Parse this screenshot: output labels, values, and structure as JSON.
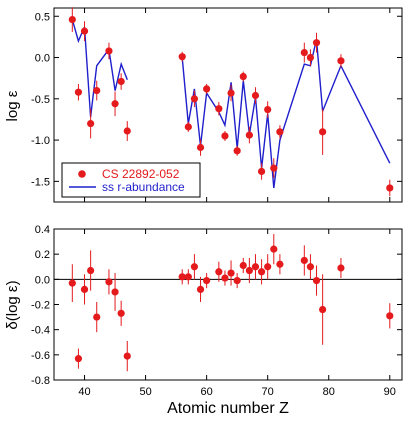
{
  "colors": {
    "points": "#e41a1c",
    "line": "#1f1fcc",
    "legend_label_points": "#e41a1c",
    "legend_label_line": "#1f1fcc"
  },
  "chart_data": [
    {
      "type": "scatter",
      "panel": "top",
      "ylabel": "log ε",
      "xlim": [
        35,
        92
      ],
      "ylim": [
        -1.75,
        0.6
      ],
      "xticks": [
        40,
        50,
        60,
        70,
        80,
        90
      ],
      "yticks": [
        0.5,
        0.0,
        -0.5,
        -1.0,
        -1.5
      ],
      "ytick_labels": [
        "0.5",
        "0.0",
        "-0.5",
        "-1.0",
        "-1.5"
      ],
      "legend": {
        "placement": "lower-left",
        "entries": [
          "CS 22892-052",
          "ss r-abundance"
        ]
      },
      "series": [
        {
          "name": "CS 22892-052",
          "kind": "points",
          "points": [
            {
              "x": 38,
              "y": 0.46,
              "err": 0.15
            },
            {
              "x": 39,
              "y": -0.42,
              "err": 0.1
            },
            {
              "x": 40,
              "y": 0.32,
              "err": 0.12
            },
            {
              "x": 41,
              "y": -0.8,
              "err": 0.18
            },
            {
              "x": 42,
              "y": -0.4,
              "err": 0.12
            },
            {
              "x": 44,
              "y": 0.08,
              "err": 0.1
            },
            {
              "x": 45,
              "y": -0.56,
              "err": 0.15
            },
            {
              "x": 46,
              "y": -0.29,
              "err": 0.1
            },
            {
              "x": 47,
              "y": -0.89,
              "err": 0.12
            },
            {
              "x": 56,
              "y": 0.01,
              "err": 0.06
            },
            {
              "x": 57,
              "y": -0.84,
              "err": 0.06
            },
            {
              "x": 58,
              "y": -0.5,
              "err": 0.1
            },
            {
              "x": 59,
              "y": -1.09,
              "err": 0.1
            },
            {
              "x": 60,
              "y": -0.38,
              "err": 0.06
            },
            {
              "x": 62,
              "y": -0.62,
              "err": 0.08
            },
            {
              "x": 63,
              "y": -0.95,
              "err": 0.06
            },
            {
              "x": 64,
              "y": -0.43,
              "err": 0.1
            },
            {
              "x": 65,
              "y": -1.13,
              "err": 0.06
            },
            {
              "x": 66,
              "y": -0.23,
              "err": 0.06
            },
            {
              "x": 67,
              "y": -0.94,
              "err": 0.1
            },
            {
              "x": 68,
              "y": -0.46,
              "err": 0.1
            },
            {
              "x": 69,
              "y": -1.38,
              "err": 0.1
            },
            {
              "x": 70,
              "y": -0.63,
              "err": 0.1
            },
            {
              "x": 71,
              "y": -1.34,
              "err": 0.12
            },
            {
              "x": 72,
              "y": -0.9,
              "err": 0.08
            },
            {
              "x": 76,
              "y": 0.06,
              "err": 0.12
            },
            {
              "x": 77,
              "y": 0.0,
              "err": 0.1
            },
            {
              "x": 78,
              "y": 0.18,
              "err": 0.12
            },
            {
              "x": 79,
              "y": -0.9,
              "err": 0.28
            },
            {
              "x": 82,
              "y": -0.04,
              "err": 0.08
            },
            {
              "x": 90,
              "y": -1.58,
              "err": 0.1
            }
          ]
        },
        {
          "name": "ss r-abundance",
          "kind": "line",
          "segments": [
            [
              [
                38,
                0.46
              ],
              [
                39,
                0.2
              ],
              [
                40,
                0.37
              ],
              [
                41,
                -0.72
              ],
              [
                42,
                -0.1
              ],
              [
                44,
                0.1
              ],
              [
                45,
                -0.4
              ],
              [
                46,
                -0.08
              ],
              [
                47,
                -0.27
              ]
            ],
            [
              [
                56,
                0.0
              ],
              [
                57,
                -0.8
              ],
              [
                58,
                -0.38
              ],
              [
                59,
                -1.07
              ],
              [
                60,
                -0.43
              ],
              [
                62,
                -0.66
              ],
              [
                63,
                -0.82
              ],
              [
                64,
                -0.3
              ],
              [
                65,
                -1.1
              ],
              [
                66,
                -0.28
              ],
              [
                67,
                -0.93
              ],
              [
                68,
                -0.48
              ],
              [
                69,
                -1.34
              ],
              [
                70,
                -0.68
              ],
              [
                71,
                -1.58
              ],
              [
                72,
                -1.0
              ],
              [
                76,
                -0.08
              ],
              [
                77,
                -0.1
              ],
              [
                78,
                0.22
              ],
              [
                79,
                -0.65
              ],
              [
                82,
                -0.1
              ],
              [
                90,
                -1.28
              ]
            ]
          ]
        }
      ]
    },
    {
      "type": "scatter",
      "panel": "bottom",
      "xlabel": "Atomic number Z",
      "ylabel": "δ(log ε)",
      "xlim": [
        35,
        92
      ],
      "ylim": [
        -0.8,
        0.4
      ],
      "xticks": [
        40,
        50,
        60,
        70,
        80,
        90
      ],
      "yticks": [
        0.4,
        0.2,
        0.0,
        -0.2,
        -0.4,
        -0.6,
        -0.8
      ],
      "ytick_labels": [
        "0.4",
        "0.2",
        "0.0",
        "-0.2",
        "-0.4",
        "-0.6",
        "-0.8"
      ],
      "reference_line_y": 0.0,
      "series": [
        {
          "name": "CS 22892-052",
          "kind": "points",
          "points": [
            {
              "x": 38,
              "y": -0.03,
              "err": 0.15
            },
            {
              "x": 39,
              "y": -0.63,
              "err": 0.08
            },
            {
              "x": 40,
              "y": -0.08,
              "err": 0.12
            },
            {
              "x": 41,
              "y": 0.07,
              "err": 0.16
            },
            {
              "x": 42,
              "y": -0.3,
              "err": 0.12
            },
            {
              "x": 44,
              "y": -0.02,
              "err": 0.1
            },
            {
              "x": 45,
              "y": -0.1,
              "err": 0.15
            },
            {
              "x": 46,
              "y": -0.27,
              "err": 0.1
            },
            {
              "x": 47,
              "y": -0.61,
              "err": 0.12
            },
            {
              "x": 56,
              "y": 0.02,
              "err": 0.06
            },
            {
              "x": 57,
              "y": 0.02,
              "err": 0.06
            },
            {
              "x": 58,
              "y": 0.1,
              "err": 0.1
            },
            {
              "x": 59,
              "y": -0.08,
              "err": 0.1
            },
            {
              "x": 60,
              "y": -0.01,
              "err": 0.06
            },
            {
              "x": 62,
              "y": 0.06,
              "err": 0.08
            },
            {
              "x": 63,
              "y": 0.01,
              "err": 0.06
            },
            {
              "x": 64,
              "y": 0.05,
              "err": 0.1
            },
            {
              "x": 65,
              "y": -0.01,
              "err": 0.06
            },
            {
              "x": 66,
              "y": 0.11,
              "err": 0.06
            },
            {
              "x": 67,
              "y": 0.07,
              "err": 0.1
            },
            {
              "x": 68,
              "y": 0.1,
              "err": 0.1
            },
            {
              "x": 69,
              "y": 0.06,
              "err": 0.1
            },
            {
              "x": 70,
              "y": 0.1,
              "err": 0.1
            },
            {
              "x": 71,
              "y": 0.24,
              "err": 0.12
            },
            {
              "x": 72,
              "y": 0.12,
              "err": 0.08
            },
            {
              "x": 76,
              "y": 0.15,
              "err": 0.12
            },
            {
              "x": 77,
              "y": 0.1,
              "err": 0.1
            },
            {
              "x": 78,
              "y": -0.01,
              "err": 0.12
            },
            {
              "x": 79,
              "y": -0.24,
              "err": 0.28
            },
            {
              "x": 82,
              "y": 0.09,
              "err": 0.08
            },
            {
              "x": 90,
              "y": -0.29,
              "err": 0.1
            }
          ]
        }
      ]
    }
  ]
}
